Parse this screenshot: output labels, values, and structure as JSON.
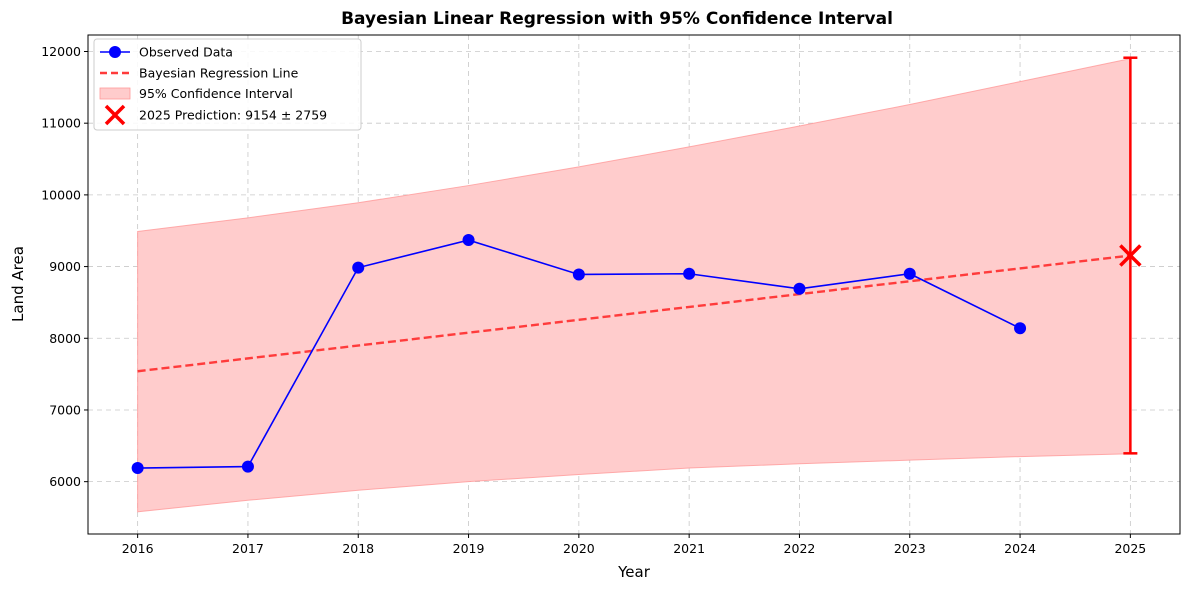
{
  "chart_data": {
    "type": "line",
    "title": "Bayesian Linear Regression with 95% Confidence Interval",
    "xlabel": "Year",
    "ylabel": "Land Area",
    "xlim": [
      2015.55,
      2025.45
    ],
    "ylim": [
      5270,
      12230
    ],
    "x_ticks": [
      2016,
      2017,
      2018,
      2019,
      2020,
      2021,
      2022,
      2023,
      2024,
      2025
    ],
    "y_ticks": [
      6000,
      7000,
      8000,
      9000,
      10000,
      11000,
      12000
    ],
    "grid": true,
    "legend_position": "top-left",
    "observed": {
      "name": "Observed Data",
      "color": "#0000ff",
      "x": [
        2016,
        2017,
        2018,
        2019,
        2020,
        2021,
        2022,
        2023,
        2024
      ],
      "y": [
        6190,
        6210,
        8985,
        9370,
        8890,
        8900,
        8690,
        8900,
        8140
      ]
    },
    "regression": {
      "name": "Bayesian Regression Line",
      "color": "#ff3b3b",
      "x": [
        2016,
        2025
      ],
      "y": [
        7540,
        9154
      ]
    },
    "confidence_interval": {
      "name": "95% Confidence Interval",
      "color": "#ff9999",
      "x": [
        2016,
        2017,
        2018,
        2019,
        2020,
        2021,
        2022,
        2023,
        2024,
        2025
      ],
      "upper": [
        9490,
        9680,
        9890,
        10130,
        10390,
        10670,
        10960,
        11260,
        11580,
        11900
      ],
      "lower": [
        5580,
        5740,
        5880,
        6000,
        6100,
        6190,
        6250,
        6300,
        6350,
        6390
      ]
    },
    "prediction": {
      "name": "2025 Prediction: 9154 ± 2759",
      "color": "#ff0000",
      "x": 2025,
      "y": 9154,
      "error": 2759,
      "upper": 11913,
      "lower": 6395
    }
  }
}
